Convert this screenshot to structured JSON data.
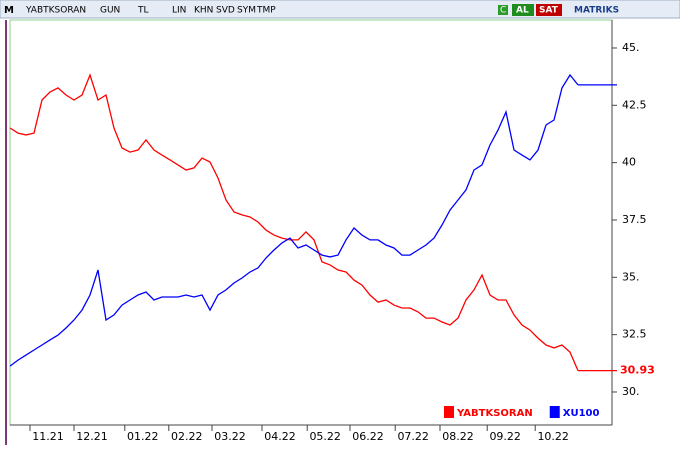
{
  "toolbar": {
    "logo": "M",
    "symbol": "YABTKSORAN",
    "items": [
      "GUN",
      "TL",
      "LIN",
      "KHN",
      "SVD",
      "SYM",
      "TMP"
    ],
    "c": "C",
    "buy": "AL",
    "sell": "SAT",
    "brand": "MATRIKS"
  },
  "chart_data": {
    "type": "line",
    "x": [
      0,
      1,
      2,
      3,
      4,
      5,
      6,
      7,
      8,
      9,
      10,
      11,
      12,
      13,
      14,
      15,
      16,
      17,
      18,
      19,
      20,
      21,
      22,
      23,
      24,
      25,
      26,
      27,
      28,
      29,
      30,
      31,
      32,
      33,
      34,
      35,
      36,
      37,
      38,
      39,
      40,
      41,
      42,
      43,
      44,
      45,
      46,
      47,
      48,
      49,
      50,
      51,
      52,
      53,
      54,
      55,
      56,
      57,
      58,
      59,
      60,
      61,
      62,
      63,
      64,
      65,
      66,
      67,
      68,
      69,
      70,
      71
    ],
    "xlim": [
      0,
      75.25
    ],
    "xticks": [
      {
        "value": 4.75,
        "label": "11.21"
      },
      {
        "value": 10.25,
        "label": "12.21"
      },
      {
        "value": 16.6,
        "label": "01.22"
      },
      {
        "value": 22.1,
        "label": "02.22"
      },
      {
        "value": 27.5,
        "label": "03.22"
      },
      {
        "value": 33.75,
        "label": "04.22"
      },
      {
        "value": 39.4,
        "label": "05.22"
      },
      {
        "value": 44.75,
        "label": "06.22"
      },
      {
        "value": 50.4,
        "label": "07.22"
      },
      {
        "value": 56,
        "label": "08.22"
      },
      {
        "value": 61.9,
        "label": "09.22"
      },
      {
        "value": 67.9,
        "label": "10.22"
      }
    ],
    "ylim": [
      28.56,
      46.22
    ],
    "yticks": [
      {
        "value": 30,
        "label": "30."
      },
      32.5,
      {
        "value": 35,
        "label": "35."
      },
      37.5,
      40,
      42.5,
      {
        "value": 45,
        "label": "45."
      }
    ],
    "legend": "bottom-right",
    "series": [
      {
        "name": "YABTKSORAN",
        "color": "#ff0000",
        "values": [
          41.51,
          41.29,
          41.21,
          41.29,
          42.73,
          43.08,
          43.26,
          42.95,
          42.73,
          42.95,
          43.82,
          42.73,
          42.95,
          41.51,
          40.64,
          40.46,
          40.55,
          40.99,
          40.55,
          40.33,
          40.12,
          39.9,
          39.68,
          39.77,
          40.2,
          40.03,
          39.33,
          38.37,
          37.85,
          37.72,
          37.63,
          37.41,
          37.06,
          36.84,
          36.71,
          36.63,
          36.63,
          36.98,
          36.63,
          35.67,
          35.54,
          35.32,
          35.23,
          34.88,
          34.66,
          34.23,
          33.92,
          34.01,
          33.79,
          33.66,
          33.66,
          33.49,
          33.22,
          33.22,
          33.05,
          32.92,
          33.22,
          34.01,
          34.45,
          35.1,
          34.23,
          34.01,
          34.01,
          33.36,
          32.92,
          32.7,
          32.35,
          32.05,
          31.92,
          32.05,
          31.74,
          30.93
        ],
        "value_labels": [
          null,
          null,
          null,
          null,
          null,
          null,
          null,
          null,
          null,
          null,
          null,
          null,
          null,
          null,
          null,
          null,
          null,
          null,
          null,
          null,
          null,
          null,
          null,
          null,
          null,
          null,
          null,
          null,
          null,
          null,
          null,
          null,
          null,
          null,
          null,
          null,
          null,
          null,
          null,
          null,
          null,
          null,
          null,
          null,
          null,
          null,
          null,
          null,
          null,
          null,
          null,
          null,
          null,
          null,
          null,
          null,
          null,
          null,
          null,
          null,
          null,
          null,
          null,
          null,
          null,
          null,
          null,
          null,
          null,
          null,
          null,
          "30.93"
        ]
      },
      {
        "name": "XU100",
        "color": "#0000ff",
        "values": [
          31.13,
          31.39,
          31.61,
          31.83,
          32.05,
          32.27,
          32.48,
          32.79,
          33.14,
          33.57,
          34.23,
          35.32,
          33.14,
          33.36,
          33.79,
          34.01,
          34.23,
          34.36,
          34.01,
          34.14,
          34.14,
          34.14,
          34.23,
          34.14,
          34.23,
          33.57,
          34.23,
          34.45,
          34.75,
          34.97,
          35.23,
          35.41,
          35.84,
          36.19,
          36.5,
          36.71,
          36.28,
          36.41,
          36.19,
          35.97,
          35.89,
          35.97,
          36.63,
          37.15,
          36.84,
          36.63,
          36.63,
          36.41,
          36.28,
          35.97,
          35.97,
          36.19,
          36.41,
          36.71,
          37.28,
          37.93,
          38.37,
          38.81,
          39.68,
          39.9,
          40.77,
          41.42,
          42.21,
          40.55,
          40.33,
          40.12,
          40.55,
          41.64,
          41.86,
          43.26,
          43.82,
          43.39
        ]
      }
    ]
  }
}
